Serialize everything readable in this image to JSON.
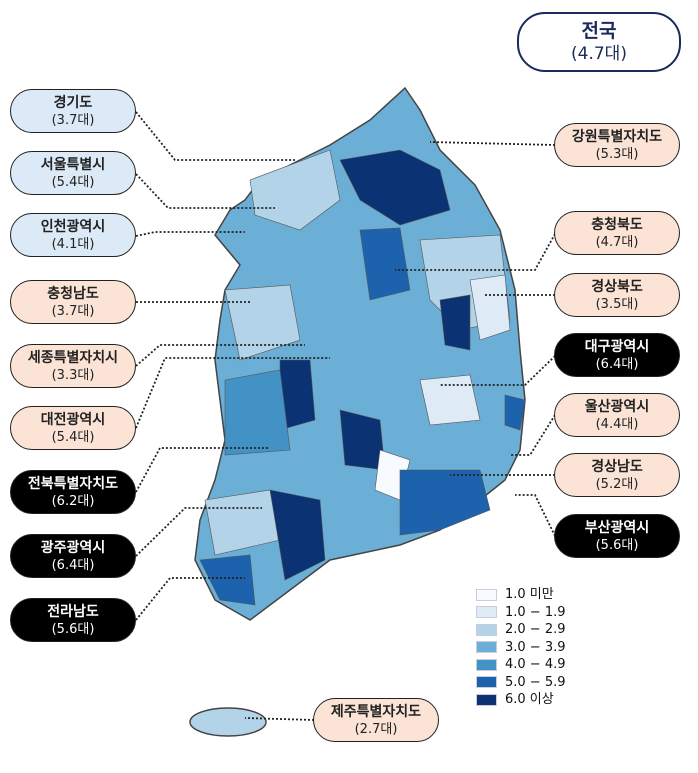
{
  "national": {
    "name": "전국",
    "value": "(4.7대)"
  },
  "regions": [
    {
      "name": "경기도",
      "value": "(3.7대)",
      "style": "blue"
    },
    {
      "name": "서울특별시",
      "value": "(5.4대)",
      "style": "blue"
    },
    {
      "name": "인천광역시",
      "value": "(4.1대)",
      "style": "blue"
    },
    {
      "name": "충청남도",
      "value": "(3.7대)",
      "style": "peach"
    },
    {
      "name": "세종특별자치시",
      "value": "(3.3대)",
      "style": "peach"
    },
    {
      "name": "대전광역시",
      "value": "(5.4대)",
      "style": "peach"
    },
    {
      "name": "전북특별자치도",
      "value": "(6.2대)",
      "style": "dark"
    },
    {
      "name": "광주광역시",
      "value": "(6.4대)",
      "style": "dark"
    },
    {
      "name": "전라남도",
      "value": "(5.6대)",
      "style": "dark"
    },
    {
      "name": "강원특별자치도",
      "value": "(5.3대)",
      "style": "peach"
    },
    {
      "name": "충청북도",
      "value": "(4.7대)",
      "style": "peach"
    },
    {
      "name": "경상북도",
      "value": "(3.5대)",
      "style": "peach"
    },
    {
      "name": "대구광역시",
      "value": "(6.4대)",
      "style": "dark"
    },
    {
      "name": "울산광역시",
      "value": "(4.4대)",
      "style": "peach"
    },
    {
      "name": "경상남도",
      "value": "(5.2대)",
      "style": "peach"
    },
    {
      "name": "부산광역시",
      "value": "(5.6대)",
      "style": "dark"
    },
    {
      "name": "제주특별자치도",
      "value": "(2.7대)",
      "style": "peach"
    }
  ],
  "legend": [
    {
      "label": "1.0 미만",
      "color": "#f7fbff"
    },
    {
      "label": "1.0 − 1.9",
      "color": "#deebf7"
    },
    {
      "label": "2.0 − 2.9",
      "color": "#b3d3e8"
    },
    {
      "label": "3.0 − 3.9",
      "color": "#6baed6"
    },
    {
      "label": "4.0 − 4.9",
      "color": "#4292c6"
    },
    {
      "label": "5.0 − 5.9",
      "color": "#1c62ad"
    },
    {
      "label": "6.0 이상",
      "color": "#0b3272"
    }
  ]
}
